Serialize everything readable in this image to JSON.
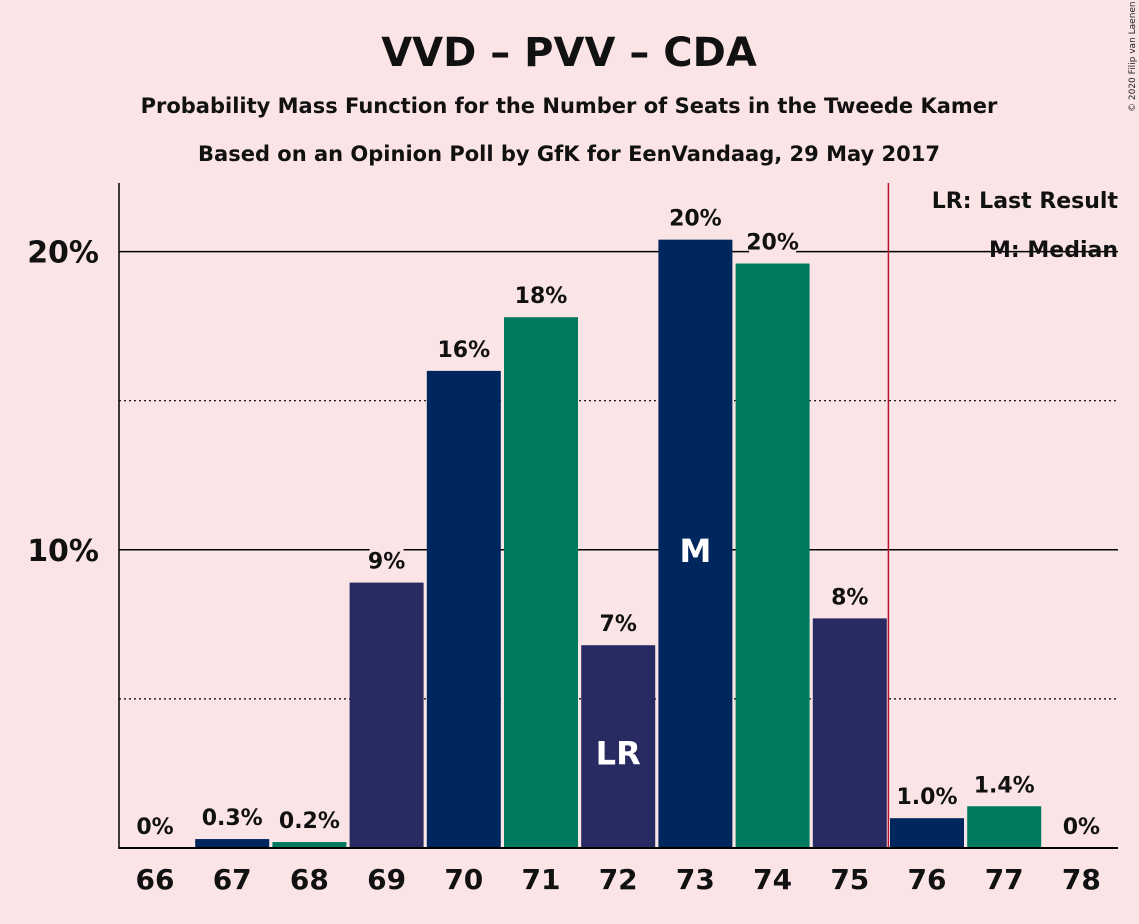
{
  "title": "VVD – PVV – CDA",
  "subtitle_1": "Probability Mass Function for the Number of Seats in the Tweede Kamer",
  "subtitle_2": "Based on an Opinion Poll by GfK for EenVandaag, 29 May 2017",
  "copyright": "© 2020 Filip van Laenen",
  "legend": {
    "last_result": "LR: Last Result",
    "median": "M: Median"
  },
  "colors": {
    "background": "#fbe4e6",
    "vvd_navy": "#00275d",
    "cda_green": "#007a5e",
    "pvv_purple": "#282a62",
    "last_result_line": "#b3122c"
  },
  "chart_data": {
    "type": "bar",
    "categories": [
      "66",
      "67",
      "68",
      "69",
      "70",
      "71",
      "72",
      "73",
      "74",
      "75",
      "76",
      "77",
      "78"
    ],
    "values": [
      0,
      0.3,
      0.2,
      8.9,
      16.0,
      17.8,
      6.8,
      20.4,
      19.6,
      7.7,
      1.0,
      1.4,
      0
    ],
    "data_labels": [
      "0%",
      "0.3%",
      "0.2%",
      "9%",
      "16%",
      "18%",
      "7%",
      "20%",
      "20%",
      "8%",
      "1.0%",
      "1.4%",
      "0%"
    ],
    "bar_colors": [
      "#00275d",
      "#00275d",
      "#007a5e",
      "#282a62",
      "#00275d",
      "#007a5e",
      "#282a62",
      "#00275d",
      "#007a5e",
      "#282a62",
      "#00275d",
      "#007a5e",
      "#282a62"
    ],
    "ylim": [
      0,
      22.3
    ],
    "yticks": [
      {
        "value": 10,
        "label": "10%"
      },
      {
        "value": 20,
        "label": "20%"
      }
    ],
    "minor_gridlines": [
      5,
      15
    ],
    "last_result": {
      "category": "72",
      "label": "LR"
    },
    "median": {
      "category": "73",
      "label": "M"
    },
    "majority_line_after": "75",
    "xlabel": "",
    "ylabel": "",
    "legend_position": "top-right"
  }
}
